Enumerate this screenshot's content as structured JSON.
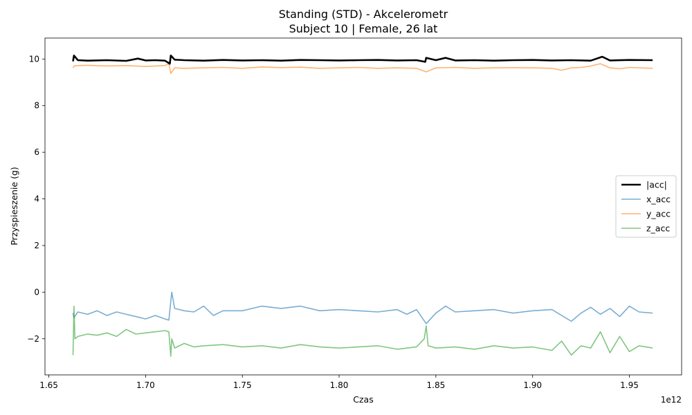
{
  "chart_data": {
    "type": "line",
    "title": "Standing (STD) - Akcelerometr",
    "subtitle": "Subject 10 | Female, 26 lat",
    "xlabel": "Czas",
    "ylabel": "Przyspieszenie (g)",
    "x_offset_text": "1e12",
    "xlim": [
      1.648,
      1.977
    ],
    "ylim": [
      -3.55,
      10.9
    ],
    "xticks": [
      1.65,
      1.7,
      1.75,
      1.8,
      1.85,
      1.9,
      1.95
    ],
    "xtick_labels": [
      "1.65",
      "1.70",
      "1.75",
      "1.80",
      "1.85",
      "1.90",
      "1.95"
    ],
    "yticks": [
      -2,
      0,
      2,
      4,
      6,
      8,
      10
    ],
    "ytick_labels": [
      "−2",
      "0",
      "2",
      "4",
      "6",
      "8",
      "10"
    ],
    "grid": false,
    "legend": "center-right",
    "series": [
      {
        "name": "|acc|",
        "color": "#000000",
        "x": [
          1.6625,
          1.663,
          1.665,
          1.67,
          1.68,
          1.69,
          1.696,
          1.7,
          1.705,
          1.71,
          1.7125,
          1.713,
          1.715,
          1.72,
          1.73,
          1.74,
          1.75,
          1.76,
          1.77,
          1.78,
          1.79,
          1.8,
          1.81,
          1.82,
          1.83,
          1.84,
          1.8445,
          1.845,
          1.85,
          1.855,
          1.86,
          1.87,
          1.88,
          1.89,
          1.9,
          1.91,
          1.92,
          1.93,
          1.936,
          1.94,
          1.95,
          1.962
        ],
        "y": [
          9.9,
          10.15,
          9.95,
          9.93,
          9.95,
          9.92,
          10.02,
          9.94,
          9.95,
          9.93,
          9.8,
          10.15,
          9.97,
          9.95,
          9.93,
          9.96,
          9.94,
          9.95,
          9.93,
          9.96,
          9.95,
          9.94,
          9.95,
          9.96,
          9.94,
          9.95,
          9.88,
          10.05,
          9.95,
          10.05,
          9.94,
          9.95,
          9.93,
          9.95,
          9.96,
          9.94,
          9.95,
          9.93,
          10.1,
          9.94,
          9.96,
          9.95
        ]
      },
      {
        "name": "x_acc",
        "color": "#1f77b4",
        "x": [
          1.6625,
          1.663,
          1.665,
          1.67,
          1.675,
          1.68,
          1.685,
          1.69,
          1.695,
          1.7,
          1.705,
          1.71,
          1.712,
          1.7135,
          1.715,
          1.72,
          1.725,
          1.73,
          1.735,
          1.74,
          1.75,
          1.76,
          1.77,
          1.78,
          1.79,
          1.8,
          1.81,
          1.82,
          1.83,
          1.835,
          1.84,
          1.845,
          1.85,
          1.855,
          1.86,
          1.87,
          1.88,
          1.89,
          1.9,
          1.91,
          1.915,
          1.92,
          1.925,
          1.93,
          1.935,
          1.94,
          1.945,
          1.95,
          1.955,
          1.962
        ],
        "y": [
          -0.9,
          -1.1,
          -0.85,
          -0.95,
          -0.8,
          -1.0,
          -0.85,
          -0.95,
          -1.05,
          -1.15,
          -1.0,
          -1.15,
          -1.2,
          0.0,
          -0.7,
          -0.8,
          -0.85,
          -0.6,
          -1.0,
          -0.8,
          -0.8,
          -0.6,
          -0.7,
          -0.6,
          -0.8,
          -0.75,
          -0.8,
          -0.85,
          -0.75,
          -0.95,
          -0.75,
          -1.35,
          -0.9,
          -0.6,
          -0.85,
          -0.8,
          -0.75,
          -0.9,
          -0.8,
          -0.75,
          -1.0,
          -1.25,
          -0.9,
          -0.65,
          -0.95,
          -0.7,
          -1.05,
          -0.6,
          -0.85,
          -0.9
        ]
      },
      {
        "name": "y_acc",
        "color": "#ff7f0e",
        "x": [
          1.6625,
          1.663,
          1.665,
          1.67,
          1.68,
          1.69,
          1.7,
          1.705,
          1.71,
          1.712,
          1.713,
          1.715,
          1.72,
          1.73,
          1.74,
          1.75,
          1.76,
          1.77,
          1.78,
          1.79,
          1.8,
          1.81,
          1.82,
          1.83,
          1.84,
          1.845,
          1.85,
          1.86,
          1.87,
          1.88,
          1.89,
          1.9,
          1.91,
          1.915,
          1.92,
          1.925,
          1.93,
          1.935,
          1.94,
          1.945,
          1.95,
          1.962
        ],
        "y": [
          9.62,
          9.7,
          9.72,
          9.73,
          9.7,
          9.72,
          9.68,
          9.7,
          9.72,
          9.8,
          9.38,
          9.62,
          9.6,
          9.62,
          9.64,
          9.6,
          9.66,
          9.63,
          9.65,
          9.6,
          9.62,
          9.64,
          9.6,
          9.62,
          9.6,
          9.45,
          9.62,
          9.64,
          9.6,
          9.62,
          9.63,
          9.62,
          9.6,
          9.52,
          9.62,
          9.64,
          9.7,
          9.8,
          9.62,
          9.58,
          9.64,
          9.6
        ]
      },
      {
        "name": "z_acc",
        "color": "#2ca02c",
        "x": [
          1.6625,
          1.663,
          1.6635,
          1.665,
          1.67,
          1.675,
          1.68,
          1.685,
          1.69,
          1.695,
          1.7,
          1.705,
          1.71,
          1.712,
          1.713,
          1.7135,
          1.715,
          1.72,
          1.725,
          1.73,
          1.74,
          1.75,
          1.76,
          1.77,
          1.78,
          1.79,
          1.8,
          1.81,
          1.82,
          1.83,
          1.84,
          1.844,
          1.845,
          1.846,
          1.85,
          1.86,
          1.87,
          1.88,
          1.89,
          1.9,
          1.91,
          1.915,
          1.92,
          1.925,
          1.93,
          1.935,
          1.94,
          1.945,
          1.95,
          1.955,
          1.962
        ],
        "y": [
          -2.7,
          -0.6,
          -2.0,
          -1.9,
          -1.8,
          -1.85,
          -1.75,
          -1.9,
          -1.6,
          -1.8,
          -1.75,
          -1.7,
          -1.65,
          -1.7,
          -2.75,
          -2.0,
          -2.4,
          -2.2,
          -2.35,
          -2.3,
          -2.25,
          -2.35,
          -2.3,
          -2.4,
          -2.25,
          -2.35,
          -2.4,
          -2.35,
          -2.3,
          -2.45,
          -2.35,
          -2.0,
          -1.45,
          -2.3,
          -2.4,
          -2.35,
          -2.45,
          -2.3,
          -2.4,
          -2.35,
          -2.5,
          -2.1,
          -2.7,
          -2.3,
          -2.4,
          -1.7,
          -2.6,
          -1.9,
          -2.55,
          -2.3,
          -2.4
        ]
      }
    ]
  }
}
